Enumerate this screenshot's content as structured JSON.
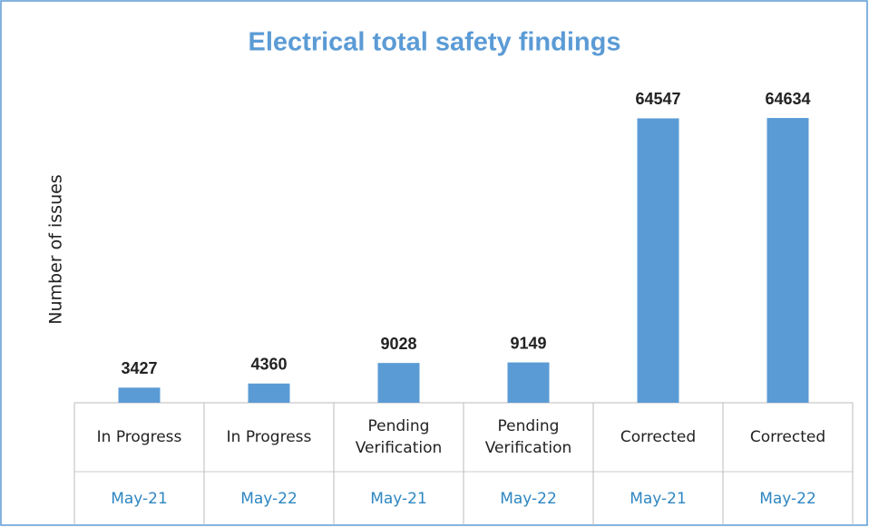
{
  "chart_data": {
    "type": "bar",
    "title": "Electrical total safety findings",
    "y_label": "Number of issues",
    "categories": [
      "In Progress",
      "In Progress",
      "Pending Verification",
      "Pending Verification",
      "Corrected",
      "Corrected"
    ],
    "periods": [
      "May-21",
      "May-22",
      "May-21",
      "May-22",
      "May-21",
      "May-22"
    ],
    "values": [
      3427,
      4360,
      9028,
      9149,
      64547,
      64634
    ],
    "color": "#5b9bd5",
    "ylim": [
      0,
      70000
    ]
  }
}
